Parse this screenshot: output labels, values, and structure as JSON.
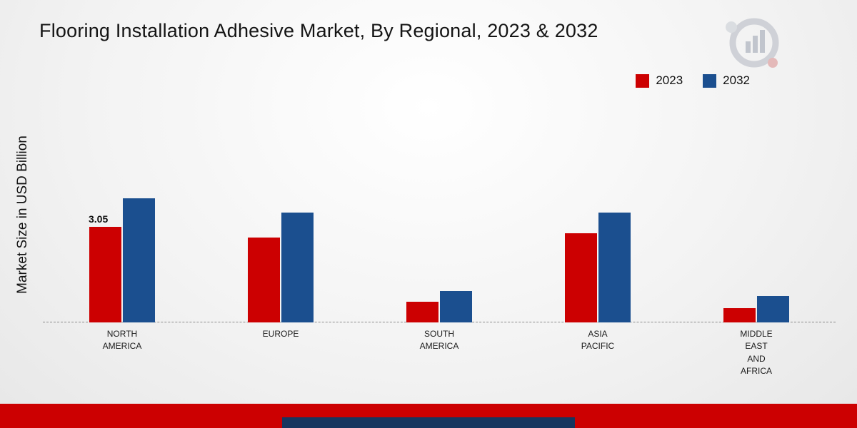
{
  "title": "Flooring Installation Adhesive Market, By Regional, 2023 & 2032",
  "y_axis_label": "Market Size in USD Billion",
  "colors": {
    "series_2023": "#cc0001",
    "series_2032": "#1b4f8f",
    "footer_bar": "#cc0001",
    "footer_accent": "#16365f"
  },
  "chart_data": {
    "type": "bar",
    "categories": [
      "NORTH AMERICA",
      "EUROPE",
      "SOUTH AMERICA",
      "ASIA PACIFIC",
      "MIDDLE EAST AND AFRICA"
    ],
    "series": [
      {
        "name": "2023",
        "color": "#cc0001",
        "values": [
          3.05,
          2.7,
          0.65,
          2.85,
          0.45
        ]
      },
      {
        "name": "2032",
        "color": "#1b4f8f",
        "values": [
          3.95,
          3.5,
          1.0,
          3.5,
          0.85
        ]
      }
    ],
    "annotations": [
      {
        "category": "NORTH AMERICA",
        "series": "2023",
        "text": "3.05"
      }
    ],
    "title": "Flooring Installation Adhesive Market, By Regional, 2023 & 2032",
    "xlabel": "",
    "ylabel": "Market Size in USD Billion",
    "ylim": [
      0,
      4.5
    ],
    "grid": false,
    "legend_position": "top-right",
    "baseline_style": "dashed"
  }
}
